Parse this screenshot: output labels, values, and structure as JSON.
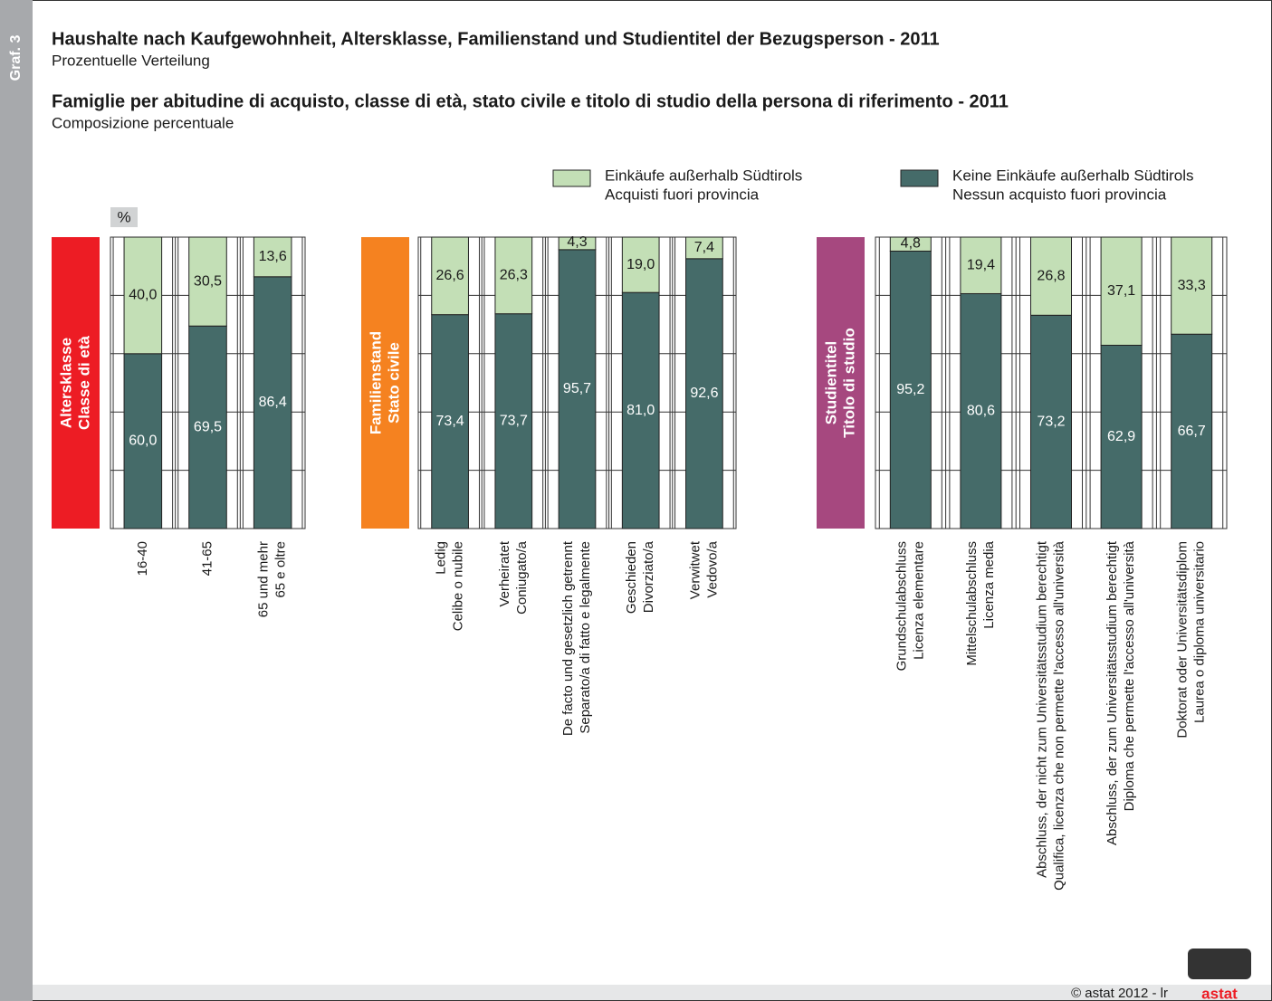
{
  "header": {
    "graf": "Graf. 3",
    "title_de": "Haushalte nach Kaufgewohnheit, Altersklasse, Familienstand und Studientitel der Bezugsperson - 2011",
    "subtitle_de": "Prozentuelle Verteilung",
    "title_it": "Famiglie per abitudine di acquisto, classe di età, stato civile e titolo di studio della persona di riferimento - 2011",
    "subtitle_it": "Composizione percentuale"
  },
  "legend": [
    {
      "name": [
        "Einkäufe außerhalb Südtirols",
        "Acquisti fuori provincia"
      ],
      "color": "#c3dfb6"
    },
    {
      "name": [
        "Keine Einkäufe außerhalb Südtirols",
        "Nessun acquisto fuori provincia"
      ],
      "color": "#456b69"
    }
  ],
  "chart_data": [
    {
      "type": "bar",
      "stacked": true,
      "unit": "%",
      "group_label": [
        "Altersklasse",
        "Classe di età"
      ],
      "group_color": "#ed1c24",
      "categories": [
        [
          "16-40"
        ],
        [
          "41-65"
        ],
        [
          "65 und mehr",
          "65 e oltre"
        ]
      ],
      "series": [
        {
          "color": "#456b69",
          "values": [
            60.0,
            69.5,
            86.4
          ],
          "value_labels": [
            "60,0",
            "69,5",
            "86,4"
          ]
        },
        {
          "color": "#c3dfb6",
          "values": [
            40.0,
            30.5,
            13.6
          ],
          "value_labels": [
            "40,0",
            "30,5",
            "13,6"
          ]
        }
      ],
      "ylim": [
        0,
        100
      ],
      "yticks": [
        0,
        20,
        40,
        60,
        80,
        100
      ],
      "grid": true
    },
    {
      "type": "bar",
      "stacked": true,
      "group_label": [
        "Familienstand",
        "Stato civile"
      ],
      "group_color": "#f58220",
      "categories": [
        [
          "Ledig",
          "Celibe o nubile"
        ],
        [
          "Verheiratet",
          "Coniugato/a"
        ],
        [
          "De facto und gesetzlich getrennt",
          "Separato/a di fatto e legalmente"
        ],
        [
          "Geschieden",
          "Divorziato/a"
        ],
        [
          "Verwitwet",
          "Vedovo/a"
        ]
      ],
      "series": [
        {
          "color": "#456b69",
          "values": [
            73.4,
            73.7,
            95.7,
            81.0,
            92.6
          ],
          "value_labels": [
            "73,4",
            "73,7",
            "95,7",
            "81,0",
            "92,6"
          ]
        },
        {
          "color": "#c3dfb6",
          "values": [
            26.6,
            26.3,
            4.3,
            19.0,
            7.4
          ],
          "value_labels": [
            "26,6",
            "26,3",
            "4,3",
            "19,0",
            "7,4"
          ]
        }
      ],
      "ylim": [
        0,
        100
      ],
      "yticks": [
        0,
        20,
        40,
        60,
        80,
        100
      ],
      "grid": true
    },
    {
      "type": "bar",
      "stacked": true,
      "group_label": [
        "Studientitel",
        "Titolo di studio"
      ],
      "group_color": "#a6487f",
      "categories": [
        [
          "Grundschulabschluss",
          "Licenza elementare"
        ],
        [
          "Mittelschulabschluss",
          "Licenza media"
        ],
        [
          "Abschluss, der nicht zum Universitätsstudium berechtigt",
          "Qualifica, licenza che non permette l'accesso all'università"
        ],
        [
          "Abschluss, der zum Universitätsstudium berechtigt",
          "Diploma che permette l'accesso all'università"
        ],
        [
          "Doktorat oder Universitätsdiplom",
          "Laurea o diploma universitario"
        ]
      ],
      "series": [
        {
          "color": "#456b69",
          "values": [
            95.2,
            80.6,
            73.2,
            62.9,
            66.7
          ],
          "value_labels": [
            "95,2",
            "80,6",
            "73,2",
            "62,9",
            "66,7"
          ]
        },
        {
          "color": "#c3dfb6",
          "values": [
            4.8,
            19.4,
            26.8,
            37.1,
            33.3
          ],
          "value_labels": [
            "4,8",
            "19,4",
            "26,8",
            "37,1",
            "33,3"
          ]
        }
      ],
      "ylim": [
        0,
        100
      ],
      "yticks": [
        0,
        20,
        40,
        60,
        80,
        100
      ],
      "grid": true
    }
  ],
  "footer": "© astat 2012 - lr",
  "logo": "astat"
}
